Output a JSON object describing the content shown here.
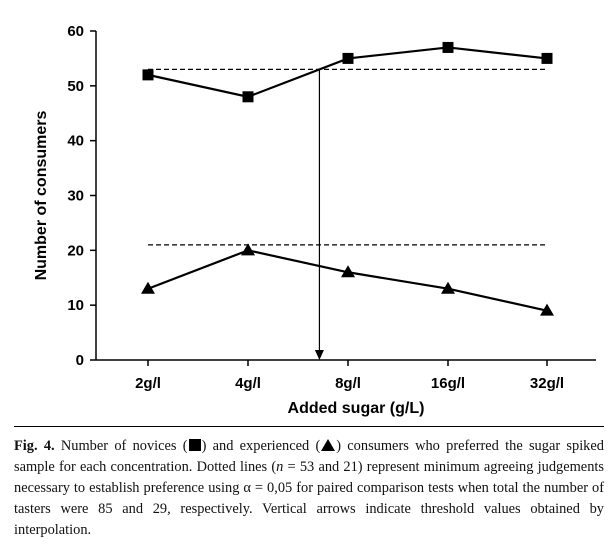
{
  "chart_data": {
    "type": "line",
    "categories": [
      "2g/l",
      "4g/l",
      "8g/l",
      "16g/l",
      "32g/l"
    ],
    "xlabel": "Added sugar (g/L)",
    "ylabel": "Number of consumers",
    "ylim": [
      0,
      60
    ],
    "yticks": [
      0,
      10,
      20,
      30,
      40,
      50,
      60
    ],
    "grid": false,
    "legend": "none",
    "series": [
      {
        "marker": "square",
        "values": [
          52,
          48,
          55,
          57,
          55
        ]
      },
      {
        "marker": "triangle",
        "values": [
          13,
          20,
          16,
          13,
          9
        ]
      }
    ],
    "threshold_lines": [
      {
        "n": 53,
        "y": 53,
        "style": "dashed"
      },
      {
        "n": 21,
        "y": 21,
        "style": "dashed"
      }
    ],
    "interpolation_arrow": {
      "x": "between 4g/l and 8g/l",
      "from_y": 53,
      "to_y": 0
    }
  },
  "caption": {
    "fig_label": "Fig. 4.",
    "part1": " Number of novices (",
    "part2": ") and experienced (",
    "part3": ") consumers who preferred the sugar spiked sample for each concentration. Dotted lines (",
    "n_symbol": "n",
    "part4": " = 53 and 21) represent minimum agreeing judgements necessary to establish preference using α = 0,05 for paired comparison tests when total the number of tasters were 85 and 29, respectively. Vertical arrows indicate threshold values obtained by interpolation."
  }
}
